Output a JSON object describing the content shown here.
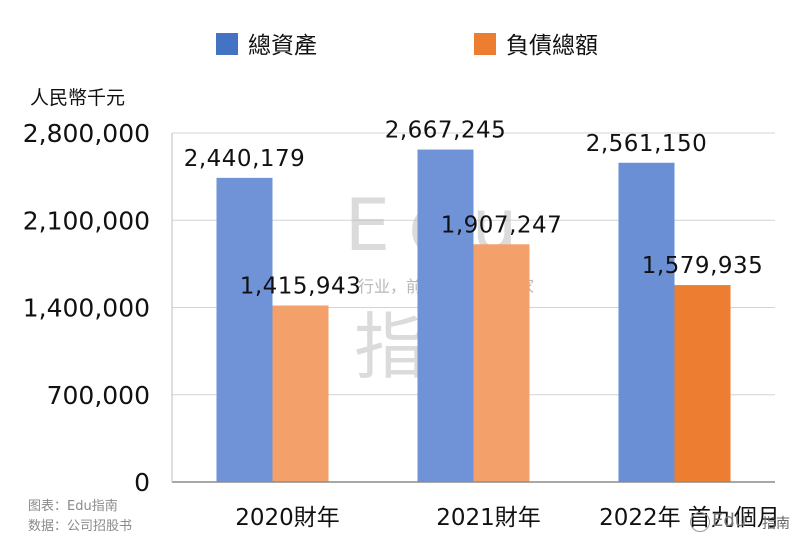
{
  "chart_data": {
    "type": "bar",
    "categories": [
      "2020財年",
      "2021財年",
      "2022年 首九個月"
    ],
    "series": [
      {
        "name": "總資產",
        "values": [
          2440179,
          2667245,
          2561150
        ],
        "color": "#4472c4"
      },
      {
        "name": "負債總額",
        "values": [
          1415943,
          1907247,
          1579935
        ],
        "color": "#ed7d31"
      }
    ],
    "data_labels": [
      [
        "2,440,179",
        "2,667,245",
        "2,561,150"
      ],
      [
        "1,415,943",
        "1,907,247",
        "1,579,935"
      ]
    ],
    "ylabel": "人民幣千元",
    "ylim": [
      0,
      2800000
    ],
    "yticks": [
      0,
      700000,
      1400000,
      2100000,
      2800000
    ],
    "ytick_labels": [
      "0",
      "700,000",
      "1,400,000",
      "2,100,000",
      "2,800,000"
    ],
    "grid": true,
    "legend_position": "top"
  },
  "watermark": {
    "big_text": "Edu",
    "big_text_2": "指南",
    "tagline": "行业，前沿、深度、独家"
  },
  "footer": {
    "chart_credit": "图表：Edu指南",
    "data_source": "数据：公司招股书"
  },
  "corner_watermark": {
    "brand": "Edu",
    "sub": "指南"
  }
}
